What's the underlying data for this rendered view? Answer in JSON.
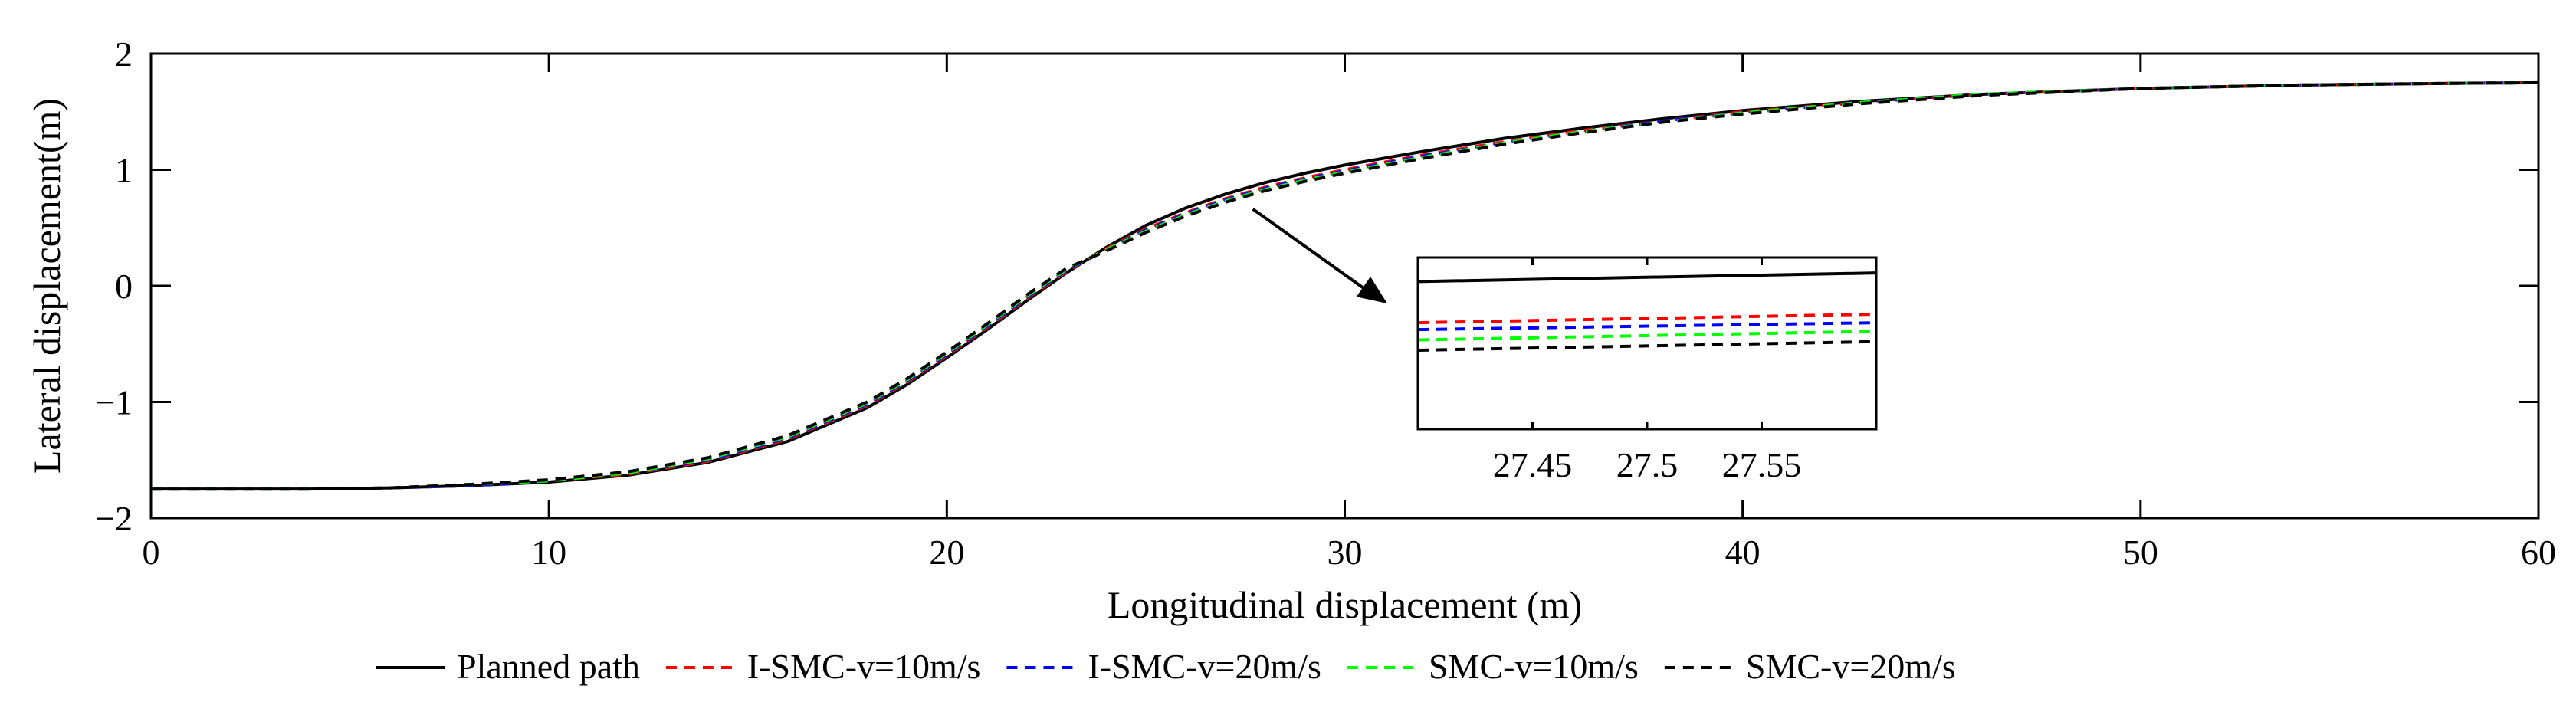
{
  "chart_data": {
    "type": "line",
    "title": "",
    "xlabel": "Longitudinal displacement (m)",
    "ylabel": "Lateral displacement(m)",
    "xlim": [
      0,
      60
    ],
    "ylim": [
      -2,
      2
    ],
    "xticks": [
      0,
      10,
      20,
      30,
      40,
      50,
      60
    ],
    "xtick_labels": [
      "0",
      "10",
      "20",
      "30",
      "40",
      "50",
      "60"
    ],
    "yticks": [
      2,
      1,
      0,
      -1,
      -2
    ],
    "ytick_labels": [
      "2",
      "1",
      "0",
      "−1",
      "−2"
    ],
    "grid": false,
    "legend_position": "bottom",
    "series": [
      {
        "name": "Planned path",
        "color": "#000000",
        "dash": "solid",
        "x": [
          0,
          2,
          4,
          6,
          8,
          10,
          12,
          14,
          16,
          18,
          19,
          20,
          21,
          22,
          23,
          24,
          25,
          26,
          27,
          28,
          29,
          30,
          32,
          34,
          36,
          38,
          40,
          43,
          46,
          50,
          54,
          58,
          60
        ],
        "y": [
          -1.75,
          -1.75,
          -1.75,
          -1.74,
          -1.72,
          -1.69,
          -1.63,
          -1.52,
          -1.34,
          -1.05,
          -0.85,
          -0.62,
          -0.38,
          -0.13,
          0.11,
          0.33,
          0.52,
          0.67,
          0.79,
          0.89,
          0.97,
          1.04,
          1.16,
          1.27,
          1.36,
          1.44,
          1.51,
          1.59,
          1.65,
          1.7,
          1.73,
          1.745,
          1.75
        ]
      },
      {
        "name": "I-SMC-v=10m/s",
        "color": "#ff0000",
        "dash": "dashed",
        "x": [
          0,
          2,
          4,
          6,
          8,
          10,
          12,
          14,
          16,
          18,
          19,
          20,
          21,
          22,
          23,
          24,
          25,
          26,
          27,
          28,
          29,
          30,
          32,
          34,
          36,
          38,
          40,
          43,
          46,
          50,
          54,
          58,
          60
        ],
        "y": [
          -1.75,
          -1.75,
          -1.75,
          -1.74,
          -1.72,
          -1.68,
          -1.62,
          -1.51,
          -1.32,
          -1.03,
          -0.83,
          -0.6,
          -0.36,
          -0.11,
          0.12,
          0.32,
          0.49,
          0.63,
          0.75,
          0.85,
          0.93,
          1.0,
          1.13,
          1.24,
          1.34,
          1.42,
          1.5,
          1.58,
          1.65,
          1.7,
          1.73,
          1.745,
          1.75
        ]
      },
      {
        "name": "I-SMC-v=20m/s",
        "color": "#0000ff",
        "dash": "dashed",
        "x": [
          0,
          2,
          4,
          6,
          8,
          10,
          12,
          14,
          16,
          18,
          19,
          20,
          21,
          22,
          23,
          24,
          25,
          26,
          27,
          28,
          29,
          30,
          32,
          34,
          36,
          38,
          40,
          43,
          46,
          50,
          54,
          58,
          60
        ],
        "y": [
          -1.75,
          -1.75,
          -1.75,
          -1.74,
          -1.72,
          -1.68,
          -1.61,
          -1.5,
          -1.31,
          -1.02,
          -0.82,
          -0.59,
          -0.35,
          -0.1,
          0.13,
          0.31,
          0.48,
          0.62,
          0.74,
          0.84,
          0.92,
          0.99,
          1.12,
          1.23,
          1.33,
          1.42,
          1.49,
          1.58,
          1.65,
          1.7,
          1.73,
          1.745,
          1.75
        ]
      },
      {
        "name": "SMC-v=10m/s",
        "color": "#00ff00",
        "dash": "dashed",
        "x": [
          0,
          2,
          4,
          6,
          8,
          10,
          12,
          14,
          16,
          18,
          19,
          20,
          21,
          22,
          23,
          24,
          25,
          26,
          27,
          28,
          29,
          30,
          32,
          34,
          36,
          38,
          40,
          43,
          46,
          50,
          54,
          58,
          60
        ],
        "y": [
          -1.75,
          -1.75,
          -1.75,
          -1.74,
          -1.71,
          -1.68,
          -1.61,
          -1.49,
          -1.3,
          -1.01,
          -0.81,
          -0.58,
          -0.34,
          -0.09,
          0.14,
          0.31,
          0.47,
          0.61,
          0.73,
          0.83,
          0.91,
          0.98,
          1.11,
          1.23,
          1.33,
          1.41,
          1.49,
          1.58,
          1.65,
          1.7,
          1.73,
          1.745,
          1.75
        ]
      },
      {
        "name": "SMC-v=20m/s",
        "color": "#000000",
        "dash": "dashed",
        "x": [
          0,
          2,
          4,
          6,
          8,
          10,
          12,
          14,
          16,
          18,
          19,
          20,
          21,
          22,
          23,
          24,
          25,
          26,
          27,
          28,
          29,
          30,
          32,
          34,
          36,
          38,
          40,
          43,
          46,
          50,
          54,
          58,
          60
        ],
        "y": [
          -1.75,
          -1.75,
          -1.75,
          -1.74,
          -1.71,
          -1.67,
          -1.6,
          -1.48,
          -1.29,
          -1.0,
          -0.8,
          -0.57,
          -0.33,
          -0.08,
          0.15,
          0.3,
          0.46,
          0.6,
          0.72,
          0.82,
          0.9,
          0.97,
          1.1,
          1.22,
          1.32,
          1.41,
          1.48,
          1.57,
          1.64,
          1.7,
          1.73,
          1.745,
          1.75
        ]
      }
    ],
    "inset": {
      "xlim": [
        27.4,
        27.6
      ],
      "ylim": [
        0,
        1
      ],
      "xticks": [
        27.45,
        27.5,
        27.55
      ],
      "xtick_labels": [
        "27.45",
        "27.5",
        "27.55"
      ],
      "annotation": "arrow from main curve near x=27.5 to zoomed inset",
      "arrow_from": [
        27.5,
        0.78
      ],
      "series": [
        {
          "name": "Planned path",
          "y": [
            0.86,
            0.91
          ]
        },
        {
          "name": "I-SMC-v=10m/s",
          "y": [
            0.62,
            0.67
          ]
        },
        {
          "name": "I-SMC-v=20m/s",
          "y": [
            0.58,
            0.62
          ]
        },
        {
          "name": "SMC-v=10m/s",
          "y": [
            0.52,
            0.57
          ]
        },
        {
          "name": "SMC-v=20m/s",
          "y": [
            0.46,
            0.51
          ]
        }
      ]
    }
  }
}
